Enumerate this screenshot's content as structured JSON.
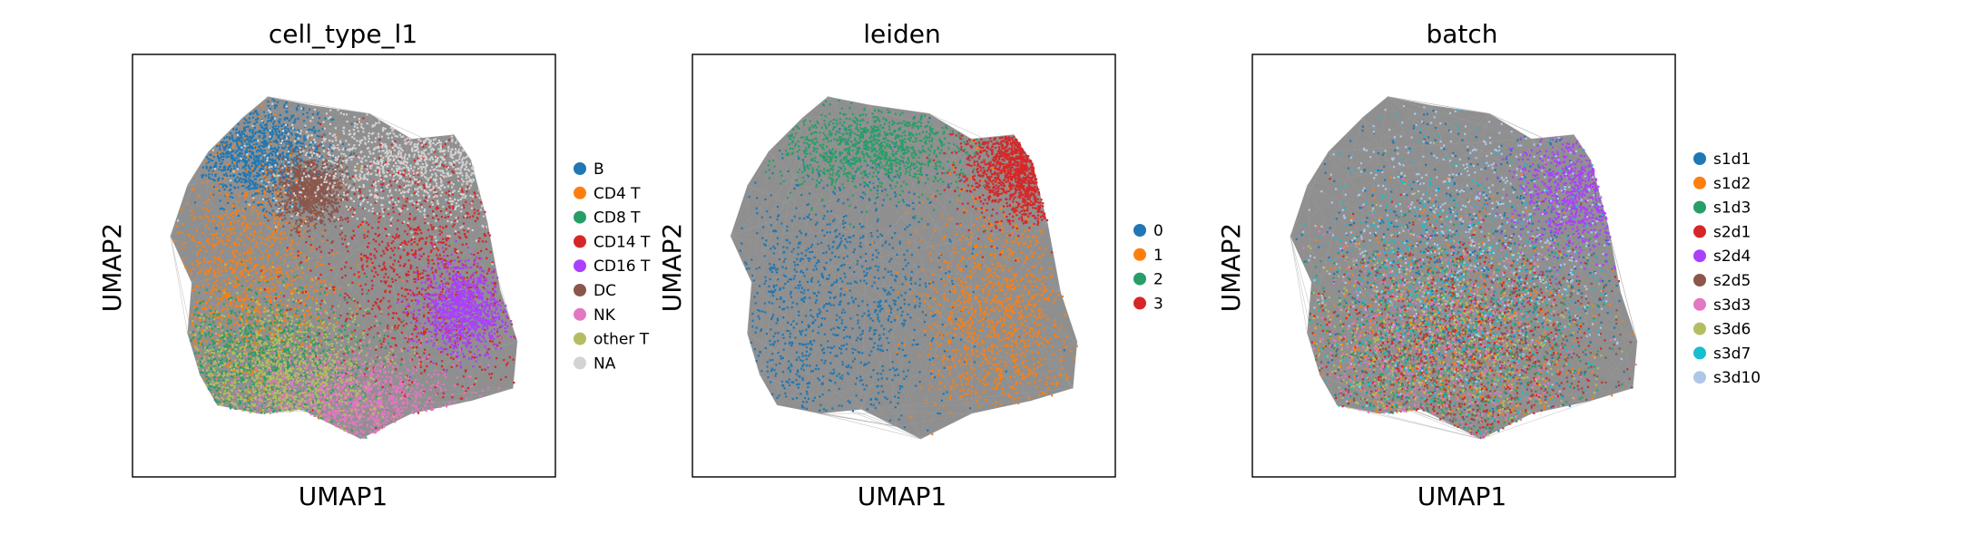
{
  "chart_data": [
    {
      "type": "scatter",
      "title": "cell_type_l1",
      "xlabel": "UMAP1",
      "ylabel": "UMAP2",
      "grid": false,
      "legend_placement": "right",
      "colors": [
        "#1f77b4",
        "#ff7f0e",
        "#279e68",
        "#d62728",
        "#aa40fc",
        "#8c564b",
        "#e377c2",
        "#b5bd61",
        "#d3d3d3"
      ],
      "legend": [
        "B",
        "CD4 T",
        "CD8 T",
        "CD14 T",
        "CD16 T",
        "DC",
        "NK",
        "other T",
        "NA"
      ],
      "clusters": [
        {
          "category": "B",
          "center": [
            0.3,
            0.77
          ],
          "spread": [
            0.08,
            0.06
          ]
        },
        {
          "category": "CD4 T",
          "center": [
            0.26,
            0.46
          ],
          "spread": [
            0.11,
            0.14
          ]
        },
        {
          "category": "CD8 T",
          "center": [
            0.28,
            0.27
          ],
          "spread": [
            0.14,
            0.08
          ]
        },
        {
          "category": "CD14 T",
          "center": [
            0.68,
            0.5
          ],
          "spread": [
            0.13,
            0.16
          ]
        },
        {
          "category": "CD16 T",
          "center": [
            0.78,
            0.4
          ],
          "spread": [
            0.05,
            0.05
          ]
        },
        {
          "category": "DC",
          "center": [
            0.42,
            0.68
          ],
          "spread": [
            0.04,
            0.04
          ]
        },
        {
          "category": "NK",
          "center": [
            0.52,
            0.18
          ],
          "spread": [
            0.13,
            0.06
          ]
        },
        {
          "category": "other T",
          "center": [
            0.35,
            0.25
          ],
          "spread": [
            0.12,
            0.08
          ]
        },
        {
          "category": "NA",
          "center": [
            0.68,
            0.75
          ],
          "spread": [
            0.17,
            0.07
          ]
        }
      ]
    },
    {
      "type": "scatter",
      "title": "leiden",
      "xlabel": "UMAP1",
      "ylabel": "UMAP2",
      "grid": false,
      "legend_placement": "right",
      "colors": [
        "#1f77b4",
        "#ff7f0e",
        "#279e68",
        "#d62728"
      ],
      "legend": [
        "0",
        "1",
        "2",
        "3"
      ],
      "clusters": [
        {
          "category": "0",
          "center": [
            0.32,
            0.4
          ],
          "spread": [
            0.15,
            0.18
          ]
        },
        {
          "category": "1",
          "center": [
            0.72,
            0.38
          ],
          "spread": [
            0.09,
            0.15
          ]
        },
        {
          "category": "2",
          "center": [
            0.42,
            0.78
          ],
          "spread": [
            0.12,
            0.05
          ]
        },
        {
          "category": "3",
          "center": [
            0.8,
            0.75
          ],
          "spread": [
            0.07,
            0.07
          ]
        }
      ]
    },
    {
      "type": "scatter",
      "title": "batch",
      "xlabel": "UMAP1",
      "ylabel": "UMAP2",
      "grid": false,
      "legend_placement": "right",
      "colors": [
        "#1f77b4",
        "#ff7f0e",
        "#279e68",
        "#d62728",
        "#aa40fc",
        "#8c564b",
        "#e377c2",
        "#b5bd61",
        "#17becf",
        "#aec7e8"
      ],
      "legend": [
        "s1d1",
        "s1d2",
        "s1d3",
        "s2d1",
        "s2d4",
        "s2d5",
        "s3d3",
        "s3d6",
        "s3d7",
        "s3d10"
      ],
      "clusters": [
        {
          "category": "s1d1",
          "center": [
            0.5,
            0.48
          ],
          "spread": [
            0.2,
            0.2
          ]
        },
        {
          "category": "s1d2",
          "center": [
            0.45,
            0.32
          ],
          "spread": [
            0.18,
            0.14
          ]
        },
        {
          "category": "s1d3",
          "center": [
            0.44,
            0.3
          ],
          "spread": [
            0.18,
            0.14
          ]
        },
        {
          "category": "s2d1",
          "center": [
            0.48,
            0.3
          ],
          "spread": [
            0.18,
            0.14
          ]
        },
        {
          "category": "s2d4",
          "center": [
            0.78,
            0.68
          ],
          "spread": [
            0.08,
            0.08
          ]
        },
        {
          "category": "s2d5",
          "center": [
            0.48,
            0.28
          ],
          "spread": [
            0.18,
            0.14
          ]
        },
        {
          "category": "s3d3",
          "center": [
            0.42,
            0.3
          ],
          "spread": [
            0.16,
            0.14
          ]
        },
        {
          "category": "s3d6",
          "center": [
            0.44,
            0.3
          ],
          "spread": [
            0.18,
            0.14
          ]
        },
        {
          "category": "s3d7",
          "center": [
            0.46,
            0.4
          ],
          "spread": [
            0.18,
            0.18
          ]
        },
        {
          "category": "s3d10",
          "center": [
            0.52,
            0.62
          ],
          "spread": [
            0.22,
            0.2
          ]
        }
      ]
    }
  ]
}
